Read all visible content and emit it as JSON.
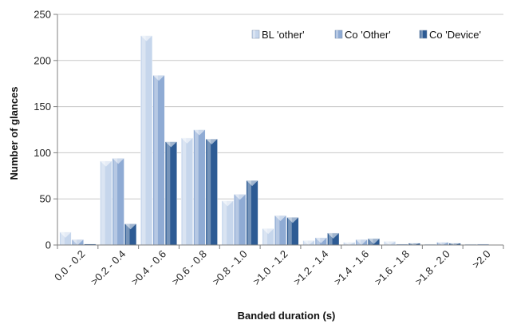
{
  "chart_data": {
    "type": "bar",
    "xlabel": "Banded duration (s)",
    "ylabel": "Number of glances",
    "ylim": [
      0,
      250
    ],
    "yticks": [
      0,
      50,
      100,
      150,
      200,
      250
    ],
    "grid": true,
    "legend_position": "top-right",
    "categories": [
      "0.0 - 0.2",
      ">0.2 - 0.4",
      ">0.4 - 0.6",
      ">0.6 - 0.8",
      ">0.8 - 1.0",
      ">1.0 - 1.2",
      ">1.2 - 1.4",
      ">1.4 - 1.6",
      ">1.6 - 1.8",
      ">1.8 - 2.0",
      ">2.0"
    ],
    "series": [
      {
        "name": "BL 'other'",
        "color": "#c6d6ec",
        "values": [
          14,
          91,
          227,
          116,
          48,
          18,
          5,
          3,
          4,
          1,
          1
        ]
      },
      {
        "name": "Co 'Other'",
        "color": "#8fabd4",
        "values": [
          6,
          94,
          184,
          125,
          55,
          32,
          8,
          6,
          1,
          3,
          1
        ]
      },
      {
        "name": "Co 'Device'",
        "color": "#2d5b94",
        "values": [
          1,
          23,
          112,
          115,
          70,
          30,
          13,
          7,
          2,
          2,
          0
        ]
      }
    ]
  }
}
